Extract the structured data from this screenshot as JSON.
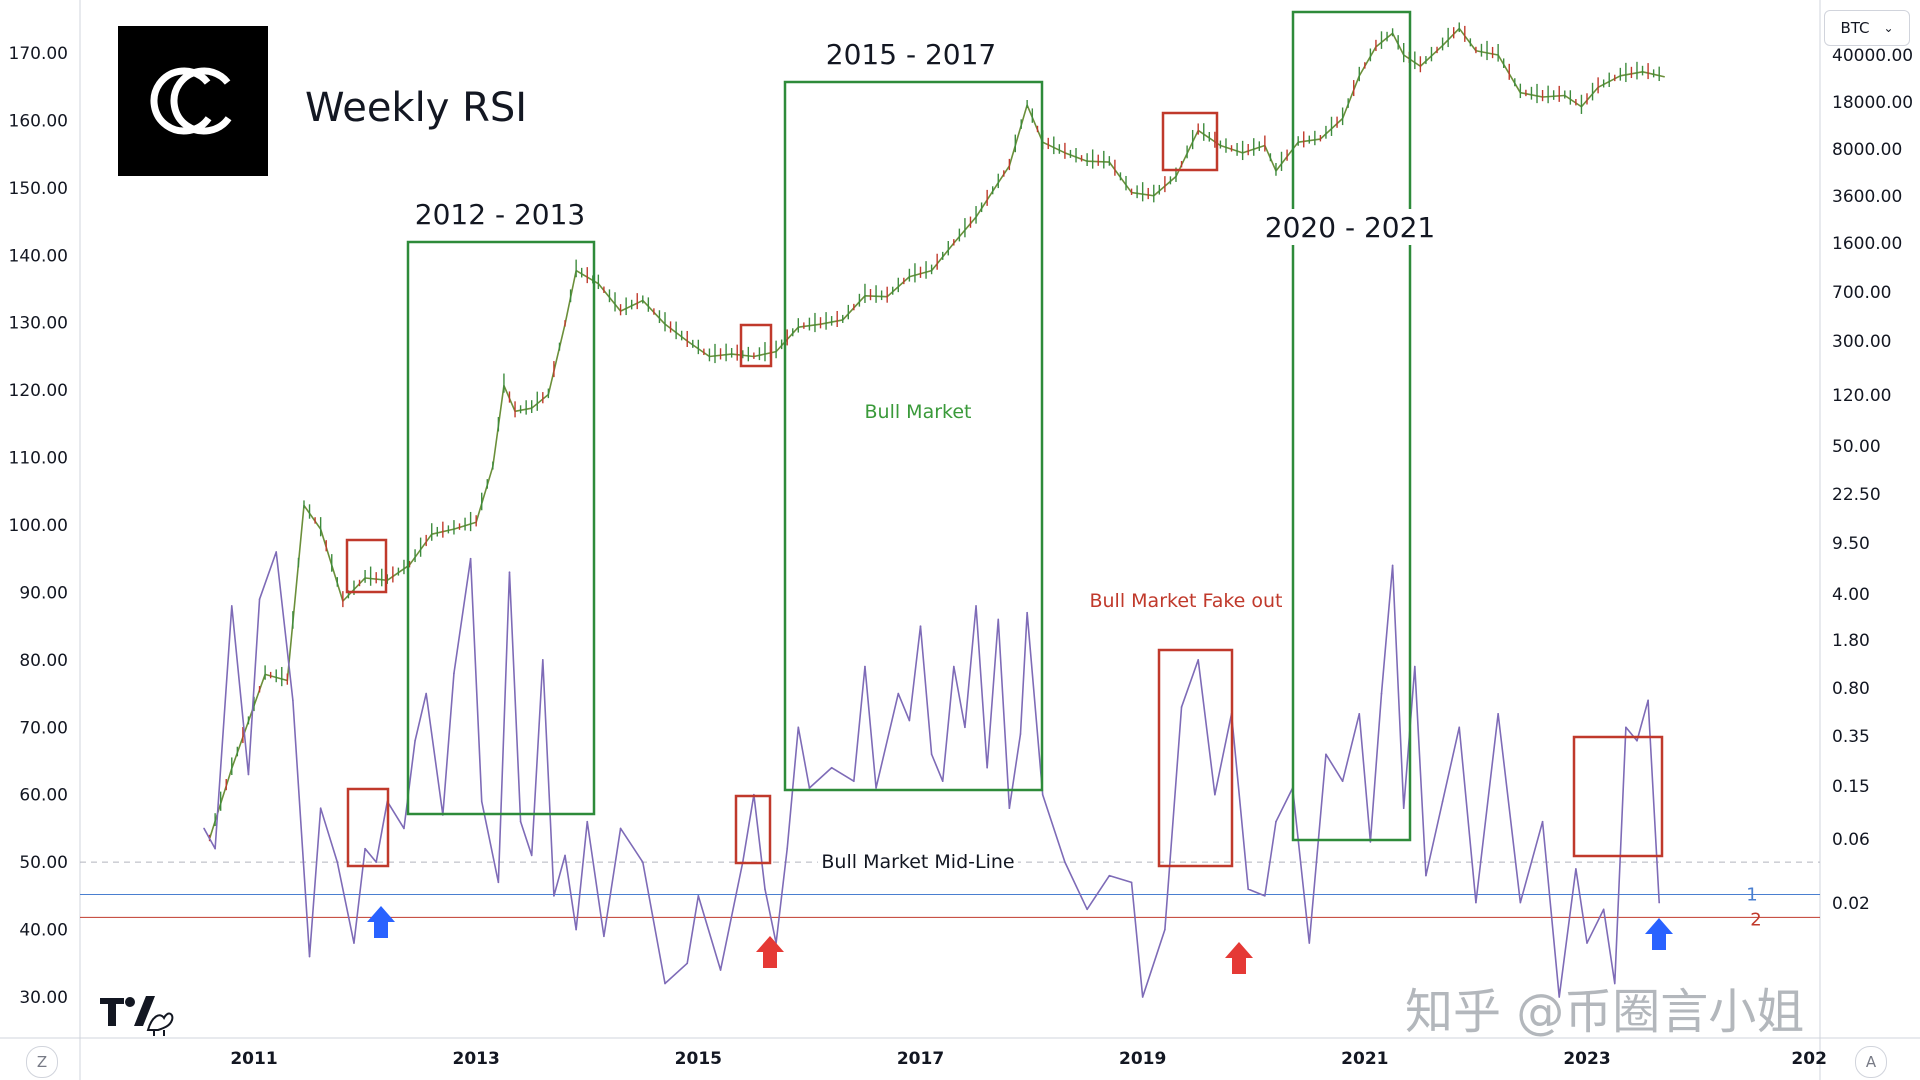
{
  "chart_data": {
    "type": "line",
    "title": "Weekly RSI",
    "symbol": "BTC",
    "left_axis": {
      "range": [
        27,
        179
      ],
      "ticks": [
        "170.00",
        "160.00",
        "150.00",
        "140.00",
        "130.00",
        "120.00",
        "110.00",
        "100.00",
        "90.00",
        "80.00",
        "70.00",
        "60.00",
        "50.00",
        "40.00",
        "30.00"
      ]
    },
    "right_axis": {
      "scale": "log",
      "ticks": [
        "40000.00",
        "18000.00",
        "8000.00",
        "3600.00",
        "1600.00",
        "700.00",
        "300.00",
        "120.00",
        "50.00",
        "22.50",
        "9.50",
        "4.00",
        "1.80",
        "0.80",
        "0.35",
        "0.15",
        "0.06",
        "0.02"
      ]
    },
    "x_axis": {
      "ticks": [
        "2011",
        "2013",
        "2015",
        "2017",
        "2019",
        "2021",
        "2023",
        "202"
      ]
    },
    "series": [
      {
        "name": "BTC",
        "style": "candles",
        "color": "#6b8f3a",
        "x": [
          2010.6,
          2010.8,
          2011.1,
          2011.3,
          2011.45,
          2011.6,
          2011.8,
          2012.0,
          2012.2,
          2012.4,
          2012.6,
          2012.8,
          2013.0,
          2013.15,
          2013.25,
          2013.35,
          2013.5,
          2013.65,
          2013.8,
          2013.9,
          2014.1,
          2014.3,
          2014.5,
          2014.7,
          2014.9,
          2015.1,
          2015.3,
          2015.5,
          2015.7,
          2015.9,
          2016.1,
          2016.3,
          2016.5,
          2016.7,
          2016.9,
          2017.1,
          2017.3,
          2017.5,
          2017.7,
          2017.8,
          2017.96,
          2018.1,
          2018.3,
          2018.5,
          2018.7,
          2018.9,
          2019.1,
          2019.3,
          2019.5,
          2019.7,
          2019.9,
          2020.1,
          2020.2,
          2020.4,
          2020.6,
          2020.8,
          2020.95,
          2021.1,
          2021.25,
          2021.35,
          2021.5,
          2021.7,
          2021.85,
          2022.0,
          2022.2,
          2022.4,
          2022.6,
          2022.8,
          2022.95,
          2023.1,
          2023.3,
          2023.5,
          2023.7
        ],
        "values": [
          0.06,
          0.2,
          1.0,
          0.9,
          18,
          12,
          3.5,
          5.2,
          5.0,
          6.5,
          11,
          12,
          13.5,
          35,
          140,
          90,
          95,
          120,
          400,
          1000,
          800,
          500,
          600,
          400,
          300,
          230,
          240,
          230,
          250,
          380,
          400,
          430,
          650,
          640,
          900,
          1000,
          1600,
          2500,
          4500,
          6000,
          17000,
          9000,
          7500,
          6500,
          6400,
          3800,
          3600,
          5000,
          11000,
          8500,
          7500,
          8500,
          5500,
          9000,
          9500,
          13500,
          28000,
          46000,
          58000,
          40000,
          33000,
          47000,
          63000,
          43000,
          40000,
          21000,
          19500,
          20000,
          16500,
          23000,
          28000,
          30000,
          27500
        ]
      },
      {
        "name": "RSI",
        "color": "#7e6bb7",
        "x": [
          2010.55,
          2010.65,
          2010.8,
          2010.95,
          2011.05,
          2011.2,
          2011.35,
          2011.5,
          2011.6,
          2011.75,
          2011.9,
          2012.0,
          2012.1,
          2012.2,
          2012.35,
          2012.45,
          2012.55,
          2012.7,
          2012.8,
          2012.95,
          2013.05,
          2013.2,
          2013.3,
          2013.4,
          2013.5,
          2013.6,
          2013.7,
          2013.8,
          2013.9,
          2014.0,
          2014.15,
          2014.3,
          2014.5,
          2014.7,
          2014.9,
          2015.0,
          2015.2,
          2015.4,
          2015.5,
          2015.6,
          2015.7,
          2015.8,
          2015.9,
          2016.0,
          2016.2,
          2016.4,
          2016.5,
          2016.6,
          2016.8,
          2016.9,
          2017.0,
          2017.1,
          2017.2,
          2017.3,
          2017.4,
          2017.5,
          2017.6,
          2017.7,
          2017.8,
          2017.9,
          2017.96,
          2018.1,
          2018.3,
          2018.5,
          2018.7,
          2018.9,
          2019.0,
          2019.2,
          2019.35,
          2019.5,
          2019.65,
          2019.8,
          2019.95,
          2020.1,
          2020.2,
          2020.35,
          2020.5,
          2020.65,
          2020.8,
          2020.95,
          2021.05,
          2021.15,
          2021.25,
          2021.35,
          2021.45,
          2021.55,
          2021.7,
          2021.85,
          2022.0,
          2022.2,
          2022.4,
          2022.6,
          2022.75,
          2022.9,
          2023.0,
          2023.15,
          2023.25,
          2023.35,
          2023.45,
          2023.55,
          2023.65
        ],
        "values": [
          55,
          52,
          88,
          63,
          89,
          96,
          74,
          36,
          58,
          50,
          38,
          52,
          50,
          59,
          55,
          68,
          75,
          57,
          78,
          95,
          59,
          47,
          93,
          56,
          51,
          80,
          45,
          51,
          40,
          56,
          39,
          55,
          50,
          32,
          35,
          45,
          34,
          50,
          60,
          46,
          38,
          52,
          70,
          61,
          64,
          62,
          79,
          61,
          75,
          71,
          85,
          66,
          62,
          79,
          70,
          88,
          64,
          86,
          58,
          69,
          87,
          60,
          50,
          43,
          48,
          47,
          30,
          40,
          73,
          80,
          60,
          72,
          46,
          45,
          56,
          61,
          38,
          66,
          62,
          72,
          53,
          75,
          94,
          58,
          79,
          48,
          59,
          70,
          44,
          72,
          44,
          56,
          30,
          49,
          38,
          43,
          32,
          70,
          68,
          74,
          44
        ]
      }
    ],
    "annotations": {
      "periods": [
        "2012 - 2013",
        "2015 - 2017",
        "2020 - 2021"
      ],
      "bull_market": "Bull Market",
      "fake_out": "Bull Market Fake out",
      "mid_line": "Bull Market Mid-Line",
      "line_1": "1",
      "line_2": "2"
    },
    "colors": {
      "background": "#ffffff",
      "green_box": "#2e8b3a",
      "red_box": "#c0392b",
      "rsi_line": "#7e6bb7",
      "line_1": "#4a7fd0",
      "line_2": "#c0392b",
      "arrow_blue": "#2962ff",
      "arrow_red": "#e53935"
    },
    "grid": false
  },
  "ui": {
    "symbol_select": "BTC",
    "z_button": "Z",
    "a_button": "A",
    "logo_label": "C",
    "watermark": "知乎 @币圈言小姐"
  }
}
